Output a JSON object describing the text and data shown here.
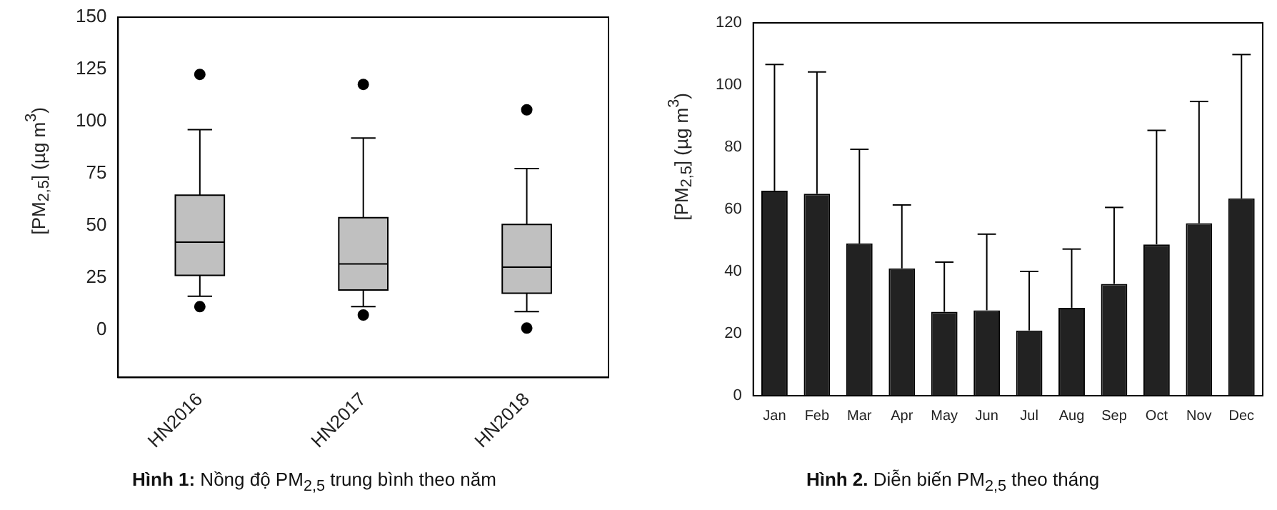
{
  "chart_data": [
    {
      "type": "box",
      "title": "Hình 1: Nồng độ PM$_{2,5}$ trung bình theo năm",
      "ylabel": "[PM$_{2,5}$] (µg m$^{3}$)",
      "categories": [
        "HN2016",
        "HN2017",
        "HN2018"
      ],
      "color": "#c0c0c0",
      "boxes": [
        {
          "low": 16,
          "q1": 26,
          "median": 42,
          "q3": 64.5,
          "high": 96,
          "outliers": [
            11,
            122.5
          ]
        },
        {
          "low": 11,
          "q1": 19,
          "median": 31.5,
          "q3": 53.7,
          "high": 92,
          "outliers": [
            7,
            117.7
          ]
        },
        {
          "low": 8.6,
          "q1": 17.5,
          "median": 30,
          "q3": 50.5,
          "high": 77.3,
          "outliers": [
            0.7,
            105.5
          ]
        }
      ],
      "ylim": [
        -23,
        150
      ],
      "yticks": [
        0,
        25,
        50,
        75,
        100,
        125,
        150
      ]
    },
    {
      "type": "bar",
      "title": "Hình 2. Diễn biến PM$_{2,5}$ theo tháng",
      "ylabel": "[PM$_{2,5}$] (µg m$^{3}$)",
      "categories": [
        "Jan",
        "Feb",
        "Mar",
        "Apr",
        "May",
        "Jun",
        "Jul",
        "Aug",
        "Sep",
        "Oct",
        "Nov",
        "Dec"
      ],
      "color": "#222222",
      "values": [
        66,
        65,
        49,
        41,
        27,
        27.5,
        21,
        28.3,
        36,
        48.7,
        55.5,
        63.5
      ],
      "errors": [
        [
          66,
          106.6
        ],
        [
          65,
          104.2
        ],
        [
          49,
          79.3
        ],
        [
          41,
          61.4
        ],
        [
          27,
          43
        ],
        [
          27.5,
          52
        ],
        [
          21,
          40
        ],
        [
          28.3,
          47.2
        ],
        [
          36,
          60.6
        ],
        [
          48.7,
          85.4
        ],
        [
          55.5,
          94.7
        ],
        [
          63.5,
          109.8
        ]
      ],
      "ylim": [
        0,
        120
      ],
      "yticks": [
        0,
        20,
        40,
        60,
        80,
        100,
        120
      ]
    }
  ]
}
